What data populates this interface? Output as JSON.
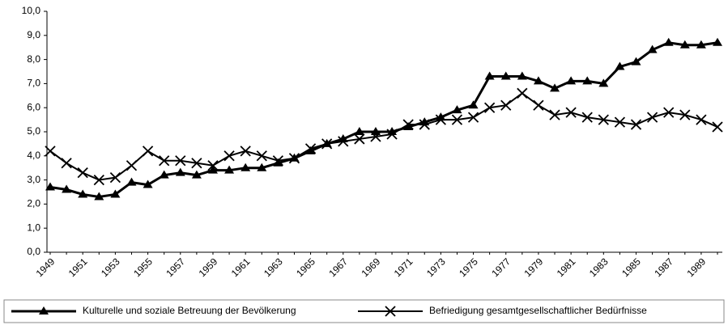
{
  "chart_data": {
    "type": "line",
    "categories": [
      "1949",
      null,
      "1951",
      null,
      "1953",
      null,
      "1955",
      null,
      "1957",
      null,
      "1959",
      null,
      "1961",
      null,
      "1963",
      null,
      "1965",
      null,
      "1967",
      null,
      "1969",
      null,
      "1971",
      null,
      "1973",
      null,
      "1975",
      null,
      "1977",
      null,
      "1979",
      null,
      "1981",
      null,
      "1983",
      null,
      "1985",
      null,
      "1987",
      null,
      "1989",
      null
    ],
    "series": [
      {
        "name": "Kulturelle und soziale Betreuung der Bevölkerung",
        "color": "#000000",
        "marker": "triangle",
        "values": [
          2.7,
          2.6,
          2.4,
          2.3,
          2.4,
          2.9,
          2.8,
          3.2,
          3.3,
          3.2,
          3.4,
          3.4,
          3.5,
          3.5,
          3.7,
          3.9,
          4.2,
          4.5,
          4.7,
          5.0,
          5.0,
          5.0,
          5.2,
          5.4,
          5.6,
          5.9,
          6.1,
          7.3,
          7.3,
          7.3,
          7.1,
          6.8,
          7.1,
          7.1,
          7.0,
          7.7,
          7.9,
          8.4,
          8.7,
          8.6,
          8.6,
          8.7
        ]
      },
      {
        "name": "Befriedigung gesamtgesellschaftlicher Bedürfnisse",
        "color": "#000000",
        "marker": "x",
        "values": [
          4.2,
          3.7,
          3.3,
          3.0,
          3.1,
          3.6,
          4.2,
          3.8,
          3.8,
          3.7,
          3.6,
          4.0,
          4.2,
          4.0,
          3.8,
          3.9,
          4.3,
          4.5,
          4.6,
          4.7,
          4.8,
          4.9,
          5.3,
          5.3,
          5.5,
          5.5,
          5.6,
          6.0,
          6.1,
          6.6,
          6.1,
          5.7,
          5.8,
          5.6,
          5.5,
          5.4,
          5.3,
          5.6,
          5.8,
          5.7,
          5.5,
          5.2
        ]
      }
    ],
    "ylim": [
      0,
      10
    ],
    "yticks": [
      {
        "value": 0,
        "label": "0,0"
      },
      {
        "value": 1,
        "label": "1,0"
      },
      {
        "value": 2,
        "label": "2,0"
      },
      {
        "value": 3,
        "label": "3,0"
      },
      {
        "value": 4,
        "label": "4,0"
      },
      {
        "value": 5,
        "label": "5,0"
      },
      {
        "value": 6,
        "label": "6,0"
      },
      {
        "value": 7,
        "label": "7,0"
      },
      {
        "value": 8,
        "label": "8,0"
      },
      {
        "value": 9,
        "label": "9,0"
      },
      {
        "value": 10,
        "label": "10,0"
      }
    ],
    "grid": false,
    "legend": "bottom"
  }
}
